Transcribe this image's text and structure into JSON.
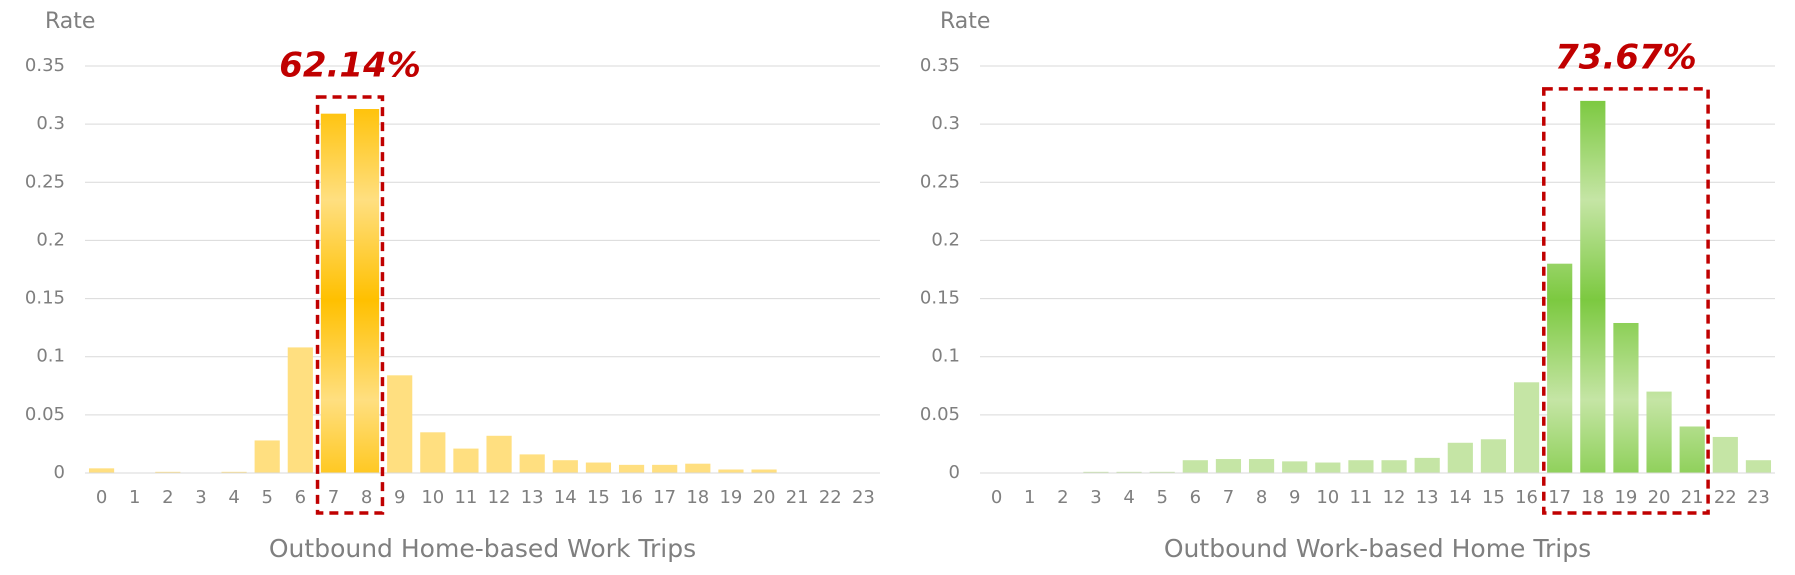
{
  "chart_data": [
    {
      "type": "bar",
      "y_label": "Rate",
      "x_label": "Outbound Home-based Work Trips",
      "categories": [
        "0",
        "1",
        "2",
        "3",
        "4",
        "5",
        "6",
        "7",
        "8",
        "9",
        "10",
        "11",
        "12",
        "13",
        "14",
        "15",
        "16",
        "17",
        "18",
        "19",
        "20",
        "21",
        "22",
        "23"
      ],
      "values": [
        0.004,
        0,
        0.001,
        0,
        0.001,
        0.028,
        0.108,
        0.309,
        0.313,
        0.084,
        0.035,
        0.021,
        0.032,
        0.016,
        0.011,
        0.009,
        0.007,
        0.007,
        0.008,
        0.003,
        0.003,
        0,
        0,
        0
      ],
      "ylim": [
        0,
        0.35
      ],
      "yticks": [
        0,
        0.05,
        0.1,
        0.15,
        0.2,
        0.25,
        0.3,
        0.35
      ],
      "grid": true,
      "color": "#ffdf80",
      "highlight_color": "#ffc000",
      "annotation": {
        "text": "62.14%",
        "from": 7,
        "to": 8
      }
    },
    {
      "type": "bar",
      "y_label": "Rate",
      "x_label": "Outbound Work-based Home Trips",
      "categories": [
        "0",
        "1",
        "2",
        "3",
        "4",
        "5",
        "6",
        "7",
        "8",
        "9",
        "10",
        "11",
        "12",
        "13",
        "14",
        "15",
        "16",
        "17",
        "18",
        "19",
        "20",
        "21",
        "22",
        "23"
      ],
      "values": [
        0,
        0,
        0,
        0.001,
        0.001,
        0.001,
        0.011,
        0.012,
        0.012,
        0.01,
        0.009,
        0.011,
        0.011,
        0.013,
        0.026,
        0.029,
        0.078,
        0.18,
        0.32,
        0.129,
        0.07,
        0.04,
        0.031,
        0.011
      ],
      "ylim": [
        0,
        0.35
      ],
      "yticks": [
        0,
        0.05,
        0.1,
        0.15,
        0.2,
        0.25,
        0.3,
        0.35
      ],
      "grid": true,
      "color": "#c5e5a5",
      "highlight_color": "#7cc940",
      "annotation": {
        "text": "73.67%",
        "from": 17,
        "to": 21
      }
    }
  ]
}
